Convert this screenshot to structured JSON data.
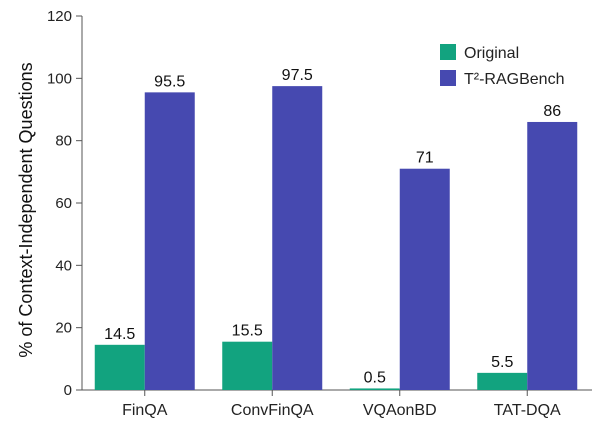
{
  "chart_data": {
    "type": "bar",
    "categories": [
      "FinQA",
      "ConvFinQA",
      "VQAonBD",
      "TAT-DQA"
    ],
    "series": [
      {
        "name": "Original",
        "values": [
          14.5,
          15.5,
          0.5,
          5.5
        ],
        "color": "#12a37f"
      },
      {
        "name": "T²-RAGBench",
        "values": [
          95.5,
          97.5,
          71,
          86
        ],
        "color": "#4649b0"
      }
    ],
    "data_labels": [
      [
        "14.5",
        "15.5",
        "0.5",
        "5.5"
      ],
      [
        "95.5",
        "97.5",
        "71",
        "86"
      ]
    ],
    "ylabel": "% of Context-Independent Questions",
    "ylim": [
      0,
      120
    ],
    "yticks": [
      0,
      20,
      40,
      60,
      80,
      100,
      120
    ],
    "legend_position": "top-right",
    "grid": false
  }
}
